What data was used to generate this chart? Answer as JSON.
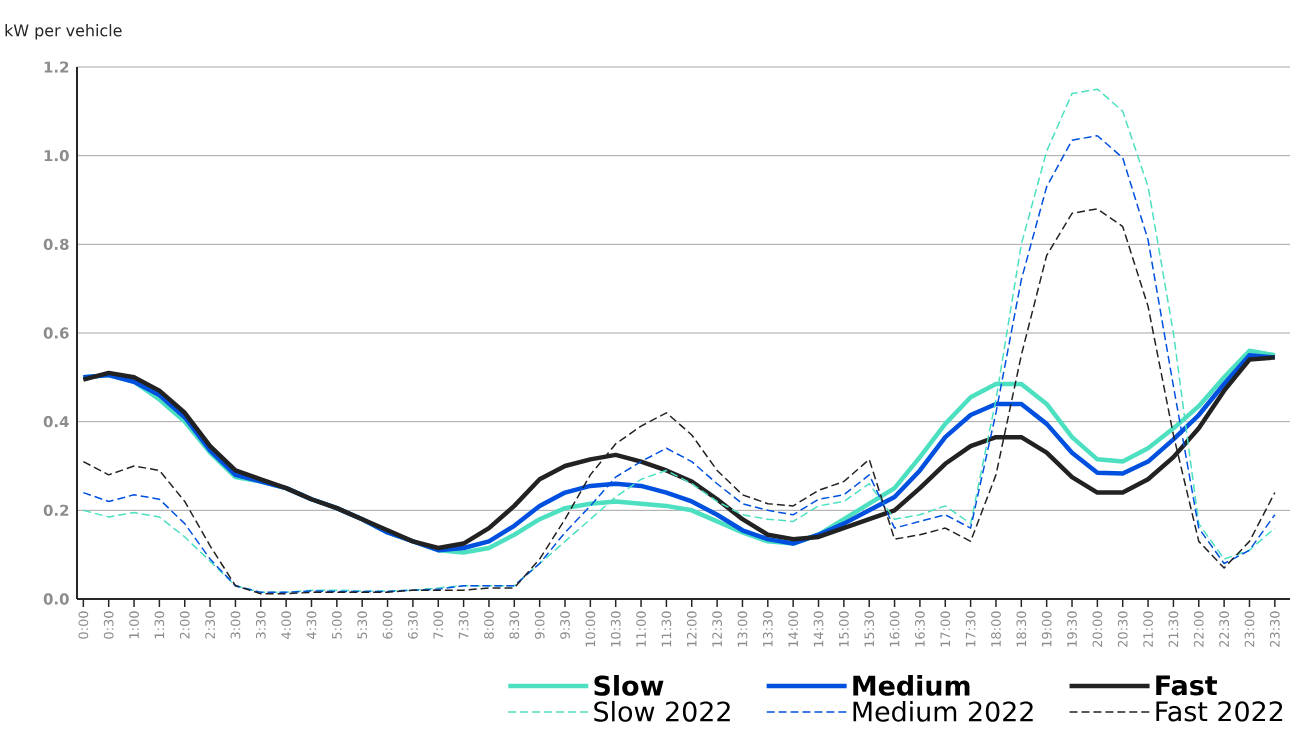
{
  "chart_data": {
    "type": "line",
    "ylabel": "kW per vehicle",
    "categories": [
      "0:00",
      "0:30",
      "1:00",
      "1:30",
      "2:00",
      "2:30",
      "3:00",
      "3:30",
      "4:00",
      "4:30",
      "5:00",
      "5:30",
      "6:00",
      "6:30",
      "7:00",
      "7:30",
      "8:00",
      "8:30",
      "9:00",
      "9:30",
      "10:00",
      "10:30",
      "11:00",
      "11:30",
      "12:00",
      "12:30",
      "13:00",
      "13:30",
      "14:00",
      "14:30",
      "15:00",
      "15:30",
      "16:00",
      "16:30",
      "17:00",
      "17:30",
      "18:00",
      "18:30",
      "19:00",
      "19:30",
      "20:00",
      "20:30",
      "21:00",
      "21:30",
      "22:00",
      "22:30",
      "23:00",
      "23:30"
    ],
    "ylim": [
      0,
      1.2
    ],
    "yticks": [
      {
        "value": 0,
        "label": "0.0"
      },
      0.2,
      0.4,
      0.6,
      0.8,
      {
        "value": 1,
        "label": "1.0"
      },
      1.2
    ],
    "grid": "y",
    "legend": "bottom",
    "marker": "none",
    "series": [
      {
        "name": "Slow",
        "color": "#4de0c0",
        "line_style": "solid",
        "values": [
          0.5,
          0.505,
          0.49,
          0.45,
          0.4,
          0.33,
          0.275,
          0.265,
          0.25,
          0.225,
          0.205,
          0.18,
          0.15,
          0.13,
          0.11,
          0.105,
          0.115,
          0.145,
          0.18,
          0.205,
          0.215,
          0.22,
          0.215,
          0.21,
          0.2,
          0.175,
          0.15,
          0.13,
          0.125,
          0.145,
          0.18,
          0.215,
          0.25,
          0.32,
          0.395,
          0.455,
          0.485,
          0.485,
          0.44,
          0.365,
          0.315,
          0.31,
          0.34,
          0.385,
          0.435,
          0.5,
          0.56,
          0.55
        ]
      },
      {
        "name": "Medium",
        "color": "#0050e0",
        "line_style": "solid",
        "values": [
          0.5,
          0.505,
          0.49,
          0.46,
          0.41,
          0.335,
          0.28,
          0.265,
          0.25,
          0.225,
          0.205,
          0.18,
          0.15,
          0.13,
          0.11,
          0.115,
          0.13,
          0.165,
          0.21,
          0.24,
          0.255,
          0.26,
          0.255,
          0.24,
          0.22,
          0.19,
          0.155,
          0.135,
          0.125,
          0.145,
          0.17,
          0.2,
          0.23,
          0.29,
          0.365,
          0.415,
          0.44,
          0.44,
          0.395,
          0.33,
          0.285,
          0.283,
          0.31,
          0.36,
          0.415,
          0.485,
          0.55,
          0.545
        ]
      },
      {
        "name": "Fast",
        "color": "#222222",
        "line_style": "solid",
        "values": [
          0.495,
          0.51,
          0.5,
          0.47,
          0.42,
          0.345,
          0.29,
          0.27,
          0.25,
          0.225,
          0.205,
          0.18,
          0.155,
          0.13,
          0.115,
          0.125,
          0.16,
          0.21,
          0.27,
          0.3,
          0.315,
          0.325,
          0.31,
          0.29,
          0.265,
          0.225,
          0.18,
          0.145,
          0.135,
          0.14,
          0.16,
          0.18,
          0.2,
          0.25,
          0.305,
          0.345,
          0.365,
          0.365,
          0.33,
          0.275,
          0.24,
          0.24,
          0.27,
          0.32,
          0.385,
          0.47,
          0.54,
          0.545
        ]
      },
      {
        "name": "Slow 2022",
        "color": "#4de0c0",
        "line_style": "dashed",
        "values": [
          0.2,
          0.185,
          0.195,
          0.185,
          0.14,
          0.085,
          0.03,
          0.015,
          0.015,
          0.02,
          0.02,
          0.018,
          0.018,
          0.02,
          0.025,
          0.03,
          0.03,
          0.03,
          0.08,
          0.13,
          0.18,
          0.23,
          0.27,
          0.29,
          0.26,
          0.22,
          0.19,
          0.18,
          0.175,
          0.21,
          0.22,
          0.26,
          0.18,
          0.19,
          0.21,
          0.17,
          0.45,
          0.8,
          1.01,
          1.14,
          1.15,
          1.1,
          0.93,
          0.6,
          0.17,
          0.09,
          0.11,
          0.16
        ]
      },
      {
        "name": "Medium 2022",
        "color": "#0050e0",
        "line_style": "dashed",
        "values": [
          0.24,
          0.22,
          0.235,
          0.225,
          0.17,
          0.09,
          0.03,
          0.015,
          0.015,
          0.018,
          0.017,
          0.017,
          0.017,
          0.02,
          0.022,
          0.03,
          0.03,
          0.03,
          0.08,
          0.15,
          0.21,
          0.275,
          0.31,
          0.34,
          0.31,
          0.26,
          0.215,
          0.2,
          0.19,
          0.225,
          0.235,
          0.28,
          0.16,
          0.175,
          0.19,
          0.16,
          0.42,
          0.72,
          0.93,
          1.035,
          1.045,
          0.995,
          0.81,
          0.48,
          0.16,
          0.08,
          0.11,
          0.19
        ]
      },
      {
        "name": "Fast 2022",
        "color": "#222222",
        "line_style": "dashed",
        "values": [
          0.31,
          0.28,
          0.3,
          0.29,
          0.22,
          0.12,
          0.03,
          0.012,
          0.012,
          0.015,
          0.015,
          0.015,
          0.015,
          0.02,
          0.02,
          0.02,
          0.025,
          0.025,
          0.09,
          0.18,
          0.28,
          0.35,
          0.39,
          0.42,
          0.37,
          0.29,
          0.235,
          0.215,
          0.21,
          0.245,
          0.265,
          0.315,
          0.135,
          0.145,
          0.16,
          0.13,
          0.28,
          0.55,
          0.775,
          0.87,
          0.88,
          0.84,
          0.66,
          0.37,
          0.13,
          0.07,
          0.13,
          0.24
        ]
      }
    ]
  }
}
